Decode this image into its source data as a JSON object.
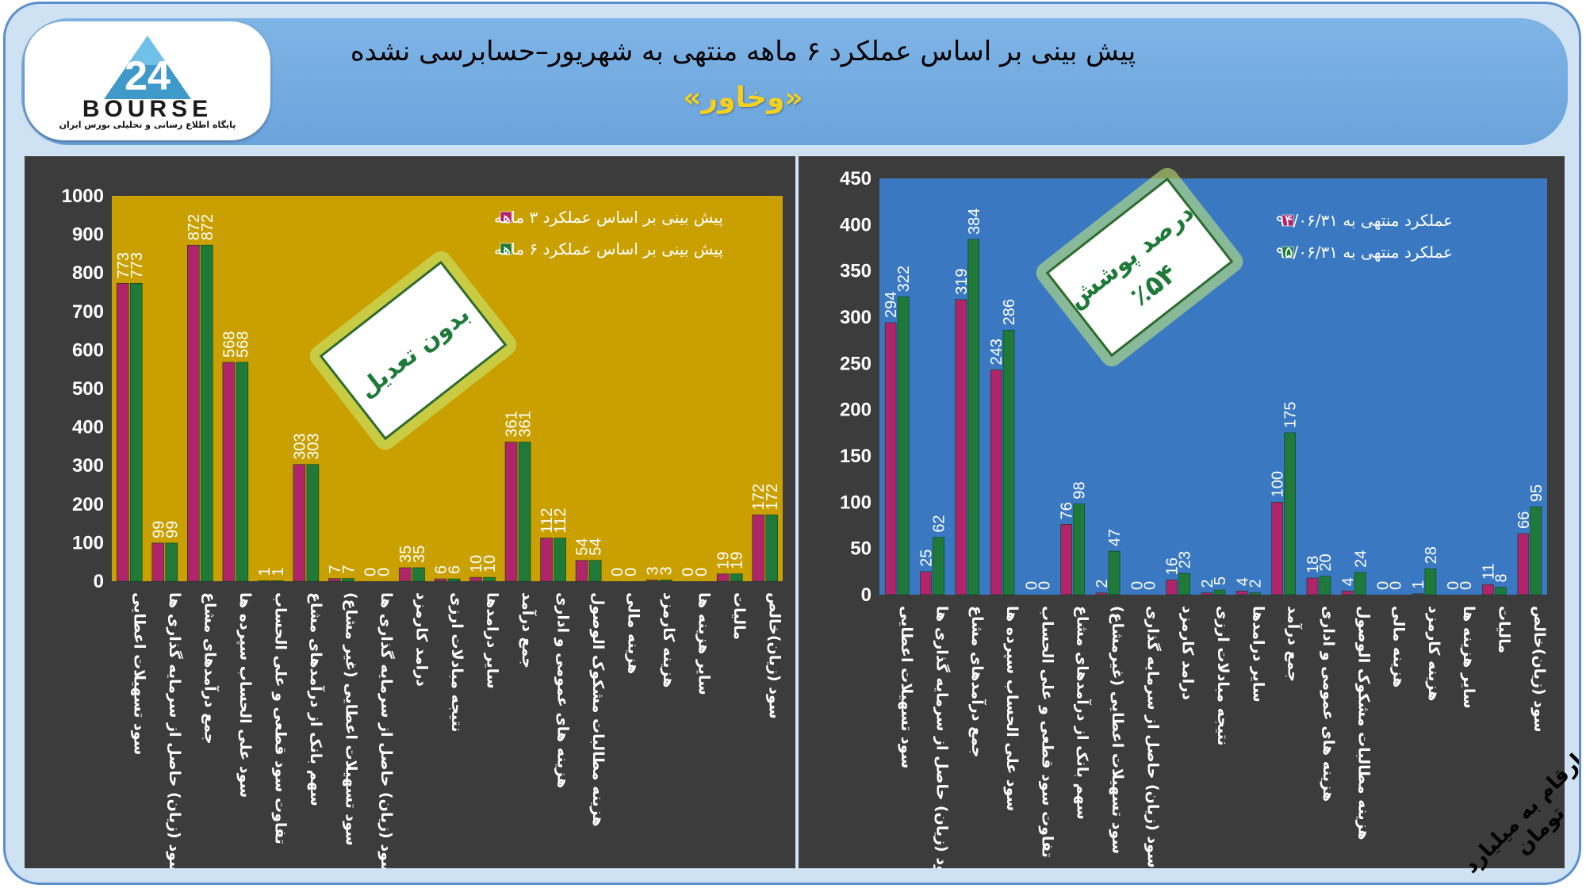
{
  "header": {
    "title": "پیش بینی بر اساس عملکرد ۶ ماهه منتهی به شهریور–حسابرسی نشده",
    "subtitle": "«وخاور»",
    "logo_text": "BOURSE",
    "logo_number": "24",
    "logo_tagline": "پایگاه اطلاع رسانی و تحلیلی بورس ایران"
  },
  "corner_note": "ارقام به میلیارد تومان",
  "colors": {
    "magenta": "#b0246a",
    "green": "#1f7a3a",
    "left_plot_bg": "#c9a000",
    "right_plot_bg": "#3a78c2",
    "panel_bg": "#3c3c3c"
  },
  "chart_data": [
    {
      "type": "bar",
      "badge": "بدون تعدیل",
      "ylim": [
        0,
        1000
      ],
      "yticks": [
        "0",
        "100",
        "200",
        "300",
        "400",
        "500",
        "600",
        "700",
        "800",
        "900",
        "1000"
      ],
      "legend_position": "top-right",
      "categories": [
        "سود تسهیلات اعطایی",
        "سود (زیان) حاصل از سرمایه گذاری ها",
        "جمع درآمدهای مشاع",
        "سود علی الحساب سپرده ها",
        "تفاوت سود قطعی و علی الحساب",
        "سهم بانک از درآمدهای مشاع",
        "سود تسهیلات اعطایی (غیر مشاع)",
        "سود (زیان) حاصل از سرمایه گذاری ها",
        "درامد کارمزد",
        "نتیجه مبادلات ارزی",
        "سایر درامدها",
        "جمع درآمد",
        "هزینه های عمومی و اداری",
        "هزینه مطالبات مشکوک الوصول",
        "هزینه مالی",
        "هزینه کارمزد",
        "سایر هزینه ها",
        "مالیات",
        "سود (زیان)خالص"
      ],
      "series": [
        {
          "name": "پیش بینی بر اساس عملکرد ۳ ماهه",
          "values": [
            773,
            99,
            872,
            568,
            1,
            303,
            7,
            0,
            35,
            6,
            10,
            361,
            112,
            54,
            0,
            3,
            0,
            19,
            172
          ]
        },
        {
          "name": "پیش بینی بر اساس عملکرد ۶ ماهه",
          "values": [
            773,
            99,
            872,
            568,
            1,
            303,
            7,
            0,
            35,
            6,
            10,
            361,
            112,
            54,
            0,
            3,
            0,
            19,
            172
          ]
        }
      ]
    },
    {
      "type": "bar",
      "badge": "درصد پوشش",
      "badge_value": "٪۵۴",
      "ylim": [
        0,
        450
      ],
      "yticks": [
        "0",
        "50",
        "100",
        "150",
        "200",
        "250",
        "300",
        "350",
        "400",
        "450"
      ],
      "legend_position": "top-right",
      "categories": [
        "سود تسهیلات اعطایی",
        "سود (زیان) حاصل از سرمایه گذاری ها",
        "جمع درآمدهای مشاع",
        "سود علی الحساب سپرده ها",
        "تفاوت سود قطعی و علی الحساب",
        "سهم بانک از درآمدهای مشاع",
        "سود تسهیلات اعطایی (غیرمشاع)",
        "سود (زیان) حاصل از سرمایه گذاری",
        "درامد کارمزد",
        "نتیجه مبادلات ارزی",
        "سایر درامدها",
        "جمع درآمد",
        "هزینه های عمومی و اداری",
        "هزینه مطالبات مشکوک الوصول",
        "هزینه مالی",
        "هزینه کارمزد",
        "سایر هزینه ها",
        "مالیات",
        "سود (زیان)خالص"
      ],
      "series": [
        {
          "name": "عملکرد منتهی به ۹۴/۰۶/۳۱",
          "values": [
            294,
            25,
            319,
            243,
            0,
            76,
            2,
            0,
            16,
            2,
            4,
            100,
            18,
            4,
            0,
            1,
            0,
            11,
            66
          ]
        },
        {
          "name": "عملکرد منتهی به ۹۵/۰۶/۳۱",
          "values": [
            322,
            62,
            384,
            286,
            0,
            98,
            47,
            0,
            23,
            5,
            2,
            175,
            20,
            24,
            0,
            28,
            0,
            8,
            95
          ]
        }
      ]
    }
  ]
}
